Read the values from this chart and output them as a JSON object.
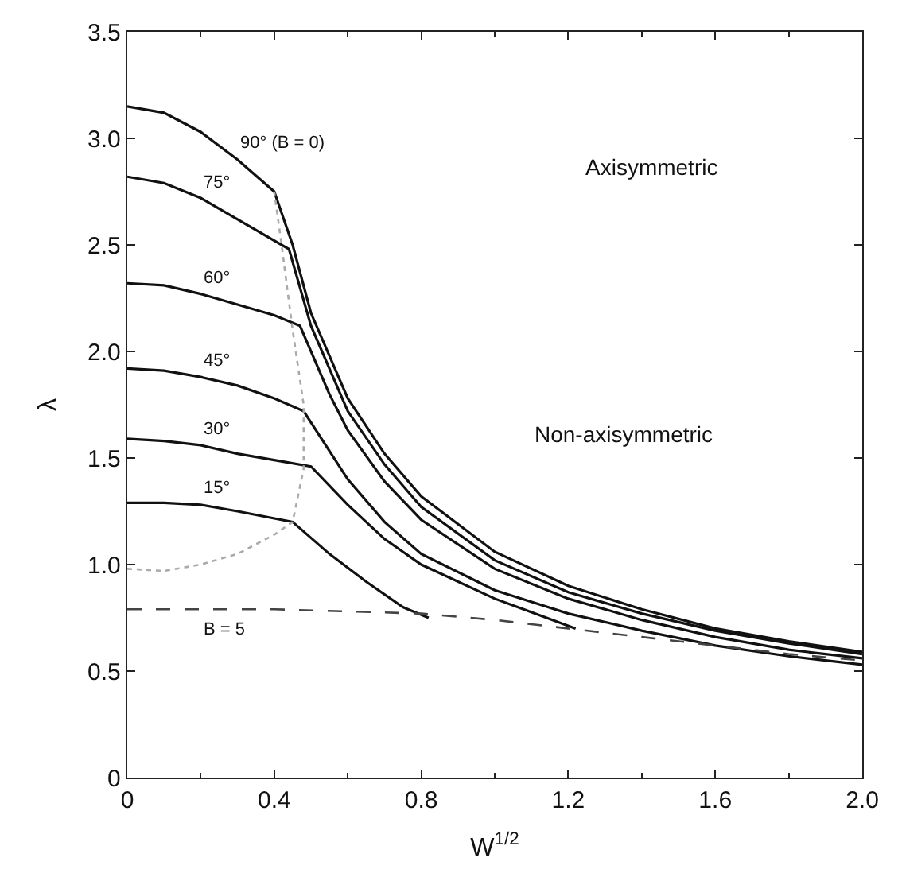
{
  "chart_data": {
    "type": "line",
    "xlabel": "W$^{1/2}$",
    "ylabel": "λ",
    "xlim": [
      0,
      2.0
    ],
    "xticks": [
      {
        "value": 0,
        "label": "0"
      },
      0.4,
      0.8,
      1.2,
      1.6,
      {
        "value": 2,
        "label": "2.0"
      }
    ],
    "ylim": [
      0,
      3.5
    ],
    "yticks": [
      {
        "value": 0,
        "label": "0"
      },
      0.5,
      {
        "value": 1,
        "label": "1.0"
      },
      1.5,
      {
        "value": 2,
        "label": "2.0"
      },
      2.5,
      {
        "value": 3,
        "label": "3.0"
      },
      3.5
    ],
    "legend": false,
    "marker": "none",
    "annotations": [
      "Axisymmetric",
      "Non-axisymmetric"
    ],
    "series": [
      {
        "name": "90° (B = 0)",
        "color": "#111111",
        "line_style": "solid",
        "x": [
          0,
          0.1,
          0.2,
          0.3,
          0.4,
          0.45,
          0.5,
          0.6,
          0.7,
          0.8,
          1.0,
          1.2,
          1.4,
          1.6,
          1.8,
          2.0
        ],
        "values": [
          3.15,
          3.12,
          3.03,
          2.9,
          2.75,
          2.5,
          2.18,
          1.78,
          1.52,
          1.32,
          1.06,
          0.9,
          0.79,
          0.7,
          0.64,
          0.59
        ]
      },
      {
        "name": "75°",
        "color": "#111111",
        "line_style": "solid",
        "x": [
          0,
          0.1,
          0.2,
          0.3,
          0.44,
          0.5,
          0.6,
          0.7,
          0.8,
          1.0,
          1.2,
          1.4,
          1.6,
          1.8,
          2.0
        ],
        "values": [
          2.82,
          2.79,
          2.72,
          2.62,
          2.48,
          2.12,
          1.72,
          1.47,
          1.27,
          1.02,
          0.87,
          0.77,
          0.69,
          0.63,
          0.58
        ]
      },
      {
        "name": "60°",
        "color": "#111111",
        "line_style": "solid",
        "x": [
          0,
          0.1,
          0.2,
          0.3,
          0.4,
          0.47,
          0.55,
          0.6,
          0.7,
          0.8,
          1.0,
          1.2,
          1.4,
          1.6,
          1.8,
          2.0
        ],
        "values": [
          2.32,
          2.31,
          2.27,
          2.22,
          2.17,
          2.12,
          1.8,
          1.63,
          1.39,
          1.21,
          0.98,
          0.84,
          0.74,
          0.66,
          0.6,
          0.56
        ]
      },
      {
        "name": "45°",
        "color": "#111111",
        "line_style": "solid",
        "x": [
          0,
          0.1,
          0.2,
          0.3,
          0.4,
          0.48,
          0.6,
          0.7,
          0.8,
          1.0,
          1.2,
          1.4,
          1.6,
          1.8,
          2.0
        ],
        "values": [
          1.92,
          1.91,
          1.88,
          1.84,
          1.78,
          1.72,
          1.4,
          1.2,
          1.05,
          0.88,
          0.77,
          0.69,
          0.62,
          0.57,
          0.53
        ]
      },
      {
        "name": "30°",
        "color": "#111111",
        "line_style": "solid",
        "x": [
          0,
          0.1,
          0.2,
          0.3,
          0.4,
          0.5,
          0.6,
          0.7,
          0.8,
          1.0,
          1.22
        ],
        "values": [
          1.59,
          1.58,
          1.56,
          1.52,
          1.49,
          1.46,
          1.28,
          1.12,
          1.0,
          0.84,
          0.7
        ]
      },
      {
        "name": "15°",
        "color": "#111111",
        "line_style": "solid",
        "x": [
          0,
          0.1,
          0.2,
          0.3,
          0.45,
          0.55,
          0.65,
          0.75,
          0.82
        ],
        "values": [
          1.29,
          1.29,
          1.28,
          1.25,
          1.2,
          1.05,
          0.92,
          0.8,
          0.75
        ]
      },
      {
        "name": "B = 5",
        "color": "#444444",
        "line_style": "dashed",
        "x": [
          0,
          0.4,
          0.8,
          1.0,
          1.2,
          1.4,
          1.6,
          1.8,
          2.0
        ],
        "values": [
          0.79,
          0.79,
          0.77,
          0.74,
          0.7,
          0.66,
          0.62,
          0.58,
          0.55
        ]
      },
      {
        "color": "#aaaaaa",
        "line_style": "dotted",
        "x": [
          0,
          0.1,
          0.2,
          0.3,
          0.4,
          0.45,
          0.48,
          0.48,
          0.45,
          0.42,
          0.4
        ],
        "values": [
          0.98,
          0.97,
          1.0,
          1.05,
          1.14,
          1.2,
          1.45,
          1.75,
          2.1,
          2.5,
          2.75
        ]
      }
    ]
  }
}
